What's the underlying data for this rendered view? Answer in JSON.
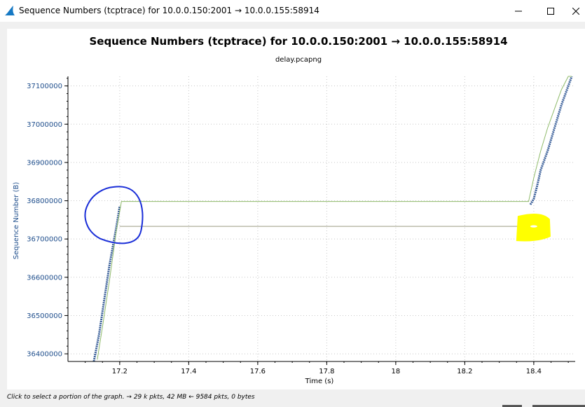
{
  "window": {
    "title": "Sequence Numbers (tcptrace) for 10.0.0.150:2001 → 10.0.0.155:58914",
    "icon": "wireshark-fin-icon",
    "controls": [
      "minimize-icon",
      "maximize-icon",
      "close-icon"
    ]
  },
  "status": {
    "text": "Click to select a portion of the graph. → 29 k pkts, 42 MB ← 9584 pkts, 0 bytes"
  },
  "colors": {
    "data_series": "#3a5f99",
    "window_line": "#8fba6a",
    "ack_line": "#9a9a80",
    "annotation_circle": "#1a2ed8",
    "annotation_highlight": "#ffff00",
    "axis_text": "#1f4e8c"
  },
  "chart_data": {
    "type": "line",
    "title": "Sequence Numbers (tcptrace) for 10.0.0.150:2001 → 10.0.0.155:58914",
    "subtitle": "delay.pcapng",
    "xlabel": "Time (s)",
    "ylabel": "Sequence Number (B)",
    "xlim": [
      17.05,
      18.52
    ],
    "ylim": [
      36380000,
      37125000
    ],
    "x_ticks": [
      "17.2",
      "17.4",
      "17.6",
      "17.8",
      "18",
      "18.2",
      "18.4"
    ],
    "y_ticks": [
      "36400000",
      "36500000",
      "36600000",
      "36700000",
      "36800000",
      "36900000",
      "37000000",
      "37100000"
    ],
    "grid": true,
    "series": [
      {
        "x": [
          17.125,
          17.14,
          17.15,
          17.16,
          17.17,
          17.18,
          17.19,
          17.2,
          18.39,
          18.4,
          18.41,
          18.42,
          18.44,
          18.46,
          18.48,
          18.5,
          18.51
        ],
        "y": [
          36380000,
          36450000,
          36510000,
          36570000,
          36630000,
          36680000,
          36730000,
          36785000,
          36790000,
          36805000,
          36840000,
          36880000,
          36930000,
          36990000,
          37050000,
          37100000,
          37125000
        ]
      },
      {
        "x": [
          17.135,
          17.15,
          17.17,
          17.19,
          17.205,
          18.385,
          18.4,
          18.42,
          18.44,
          18.46,
          18.48,
          18.5,
          18.51
        ],
        "y": [
          36385000,
          36470000,
          36590000,
          36720000,
          36798000,
          36798000,
          36860000,
          36930000,
          36990000,
          37040000,
          37090000,
          37125000,
          37125000
        ]
      },
      {
        "x": [
          17.2,
          18.39
        ],
        "y": [
          36733000,
          36733000
        ]
      }
    ],
    "annotations": [
      {
        "kind": "ellipse",
        "x": 17.195,
        "y": 36750000
      },
      {
        "kind": "highlight",
        "x": 18.4,
        "y": 36733000
      }
    ]
  }
}
